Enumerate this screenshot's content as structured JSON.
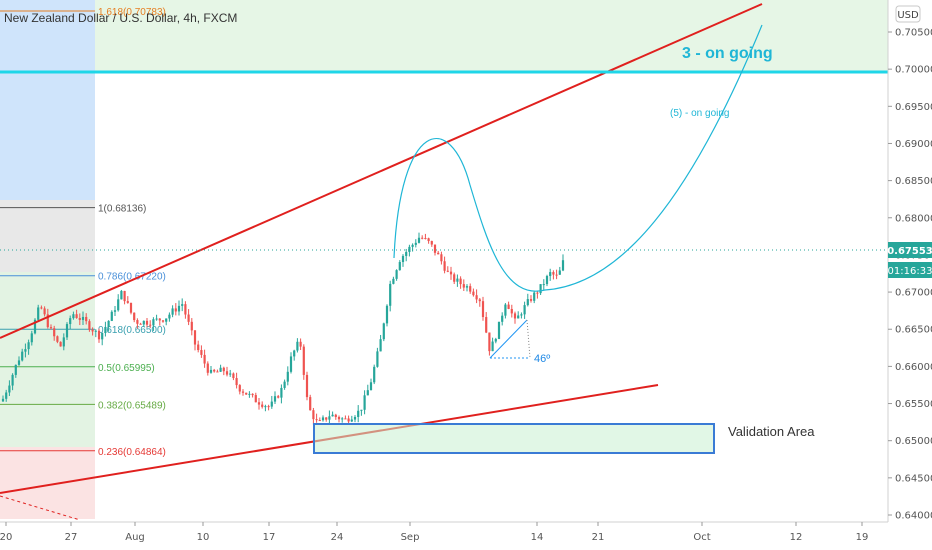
{
  "header": {
    "symbol_title": "New Zealand Dollar / U.S. Dollar, 4h, FXCM",
    "currency_badge": "USD"
  },
  "colors": {
    "up": "#26a69a",
    "down": "#ef5350",
    "channel": "#e0201e",
    "cyan": "#1fb6d6",
    "box": "#3a7bd5",
    "fib_bg": "#e6f6e6"
  },
  "chart_data": {
    "type": "candlestick",
    "title": "New Zealand Dollar / U.S. Dollar, 4h, FXCM",
    "ylim": [
      0.64,
      0.708
    ],
    "y_ticks": [
      "0.70500",
      "0.70000",
      "0.69500",
      "0.69000",
      "0.68500",
      "0.68000",
      "0.67500",
      "0.67000",
      "0.66500",
      "0.66000",
      "0.65500",
      "0.65000",
      "0.64500",
      "0.64000"
    ],
    "x_ticks": [
      "20",
      "27",
      "Aug",
      "10",
      "17",
      "24",
      "Sep",
      "14",
      "21",
      "Oct",
      "12",
      "19"
    ],
    "last_price": "0.67553",
    "countdown": "01:16:33",
    "fibonacci": [
      {
        "ratio": "1.618",
        "label": "1.618(0.70783)",
        "price": 0.70783,
        "color": "#e67e22"
      },
      {
        "ratio": "1",
        "label": "1(0.68136)",
        "price": 0.68136,
        "color": "#555555"
      },
      {
        "ratio": "0.786",
        "label": "0.786(0.67220)",
        "price": 0.6722,
        "color": "#4a90d9"
      },
      {
        "ratio": "0.618",
        "label": "0.618(0.66500)",
        "price": 0.665,
        "color": "#3aa0b0"
      },
      {
        "ratio": "0.5",
        "label": "0.5(0.65995)",
        "price": 0.65995,
        "color": "#4caf50"
      },
      {
        "ratio": "0.382",
        "label": "0.382(0.65489)",
        "price": 0.65489,
        "color": "#66aa44"
      },
      {
        "ratio": "0.236",
        "label": "0.236(0.64864)",
        "price": 0.64864,
        "color": "#e53935"
      }
    ],
    "annotations": {
      "wave_3": "3 - on going",
      "wave_5": "(5) -  on going",
      "angle": "46º",
      "validation": "Validation Area"
    },
    "horizontal_level": 0.6995,
    "validation_area": {
      "top": 0.6523,
      "bottom": 0.6484
    }
  }
}
